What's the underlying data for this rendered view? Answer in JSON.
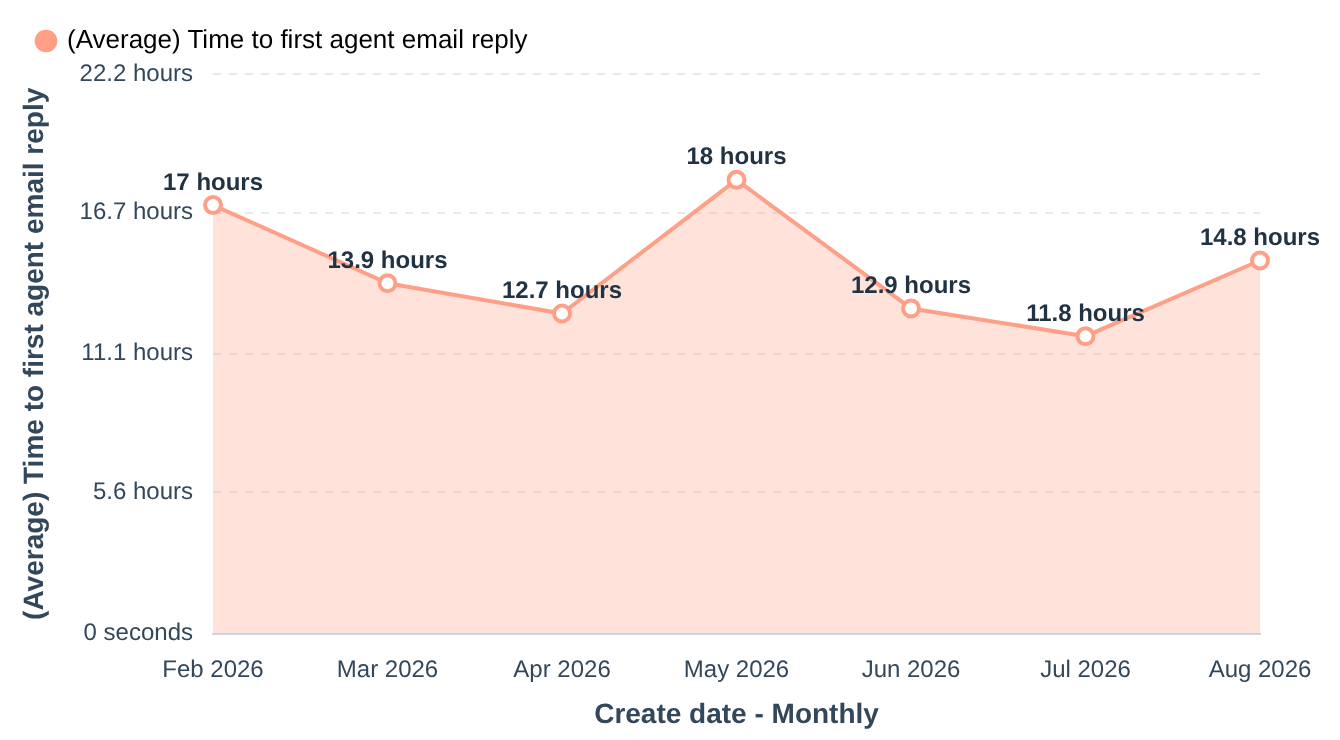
{
  "chart_data": {
    "type": "area",
    "xlabel": "Create date - Monthly",
    "ylabel": "(Average) Time to first agent email reply",
    "categories": [
      "Feb 2026",
      "Mar 2026",
      "Apr 2026",
      "May 2026",
      "Jun 2026",
      "Jul 2026",
      "Aug 2026"
    ],
    "series": [
      {
        "name": "(Average) Time to first agent email reply",
        "color": "#ff9f86",
        "values": [
          17,
          13.9,
          12.7,
          18,
          12.9,
          11.8,
          14.8
        ],
        "value_labels": [
          "17 hours",
          "13.9 hours",
          "12.7 hours",
          "18 hours",
          "12.9 hours",
          "11.8 hours",
          "14.8 hours"
        ]
      }
    ],
    "ylim": [
      0,
      22.2
    ],
    "yticks": [
      {
        "value": 0,
        "label": "0 seconds"
      },
      {
        "value": 5.6,
        "label": "5.6 hours"
      },
      {
        "value": 11.1,
        "label": "11.1 hours"
      },
      {
        "value": 16.7,
        "label": "16.7 hours"
      },
      {
        "value": 22.2,
        "label": "22.2 hours"
      }
    ],
    "grid": "y",
    "legend": "top left",
    "marker": "circle"
  }
}
